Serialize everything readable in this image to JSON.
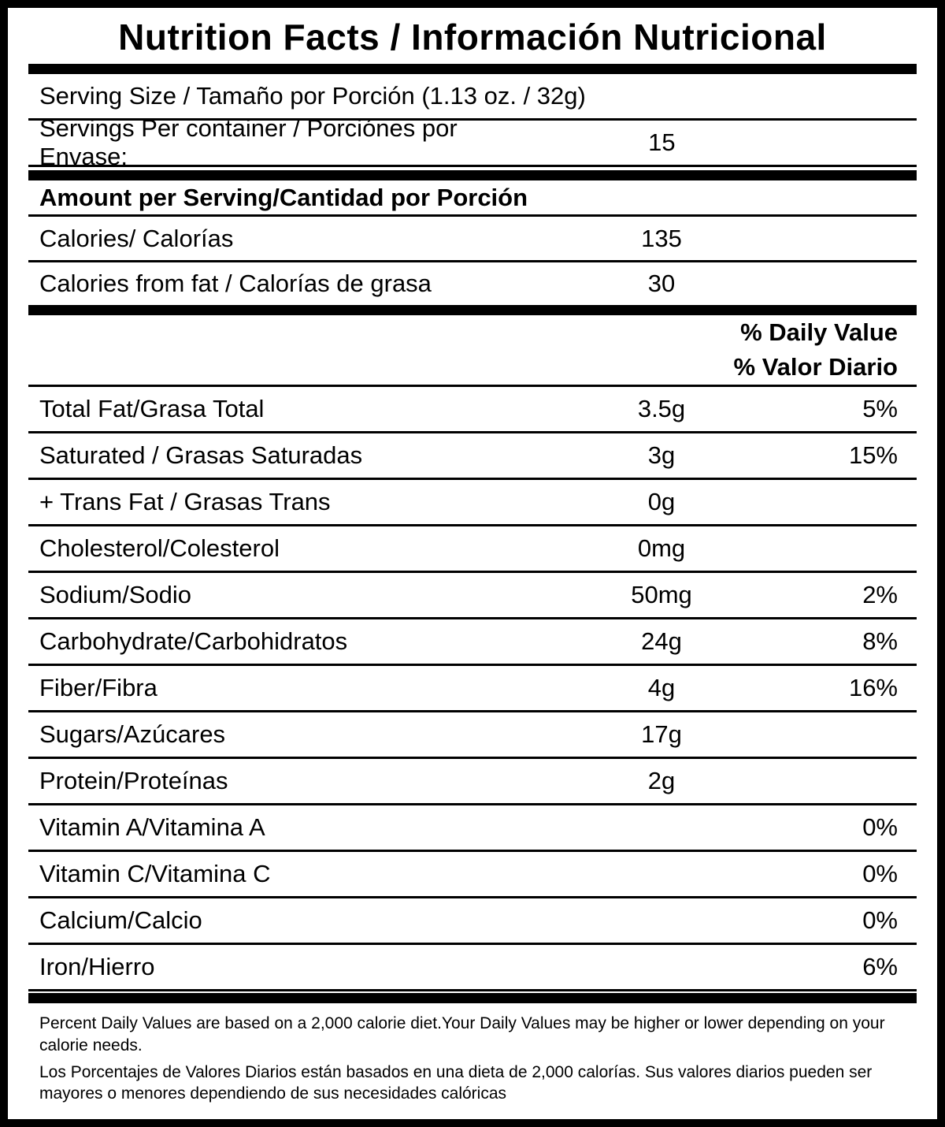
{
  "title": "Nutrition Facts / Información Nutricional",
  "serving": {
    "size": "Serving Size / Tamaño por Porción (1.13 oz. / 32g)",
    "per_container_label": "Servings Per container / Porciónes por Envase:",
    "per_container_value": "15"
  },
  "amount_per_serving": "Amount per Serving/Cantidad por Porción",
  "calories": {
    "label": "Calories/ Calorías",
    "value": "135"
  },
  "calories_from_fat": {
    "label": "Calories from fat / Calorías de grasa",
    "value": "30"
  },
  "daily_value_header": {
    "en": "% Daily Value",
    "es": "% Valor Diario"
  },
  "nutrients": [
    {
      "label": "Total Fat/Grasa Total",
      "amount": "3.5g",
      "dv": "5%"
    },
    {
      "label": "Saturated / Grasas Saturadas",
      "amount": "3g",
      "dv": "15%"
    },
    {
      "label": "+ Trans Fat / Grasas Trans",
      "amount": "0g",
      "dv": ""
    },
    {
      "label": "Cholesterol/Colesterol",
      "amount": "0mg",
      "dv": ""
    },
    {
      "label": "Sodium/Sodio",
      "amount": "50mg",
      "dv": "2%"
    },
    {
      "label": "Carbohydrate/Carbohidratos",
      "amount": "24g",
      "dv": "8%"
    },
    {
      "label": "Fiber/Fibra",
      "amount": "4g",
      "dv": "16%"
    },
    {
      "label": "Sugars/Azúcares",
      "amount": "17g",
      "dv": ""
    },
    {
      "label": "Protein/Proteínas",
      "amount": "2g",
      "dv": ""
    },
    {
      "label": "Vitamin A/Vitamina A",
      "amount": "",
      "dv": "0%"
    },
    {
      "label": "Vitamin C/Vitamina C",
      "amount": "",
      "dv": "0%"
    },
    {
      "label": "Calcium/Calcio",
      "amount": "",
      "dv": "0%"
    },
    {
      "label": "Iron/Hierro",
      "amount": "",
      "dv": "6%"
    }
  ],
  "footnotes": {
    "en": "Percent Daily Values are based on a 2,000 calorie diet.Your Daily Values may be higher or lower depending on your calorie needs.",
    "es": "Los Porcentajes de Valores Diarios están basados en una dieta de 2,000 calorías. Sus valores diarios pueden ser mayores o menores dependiendo de sus necesidades calóricas"
  }
}
